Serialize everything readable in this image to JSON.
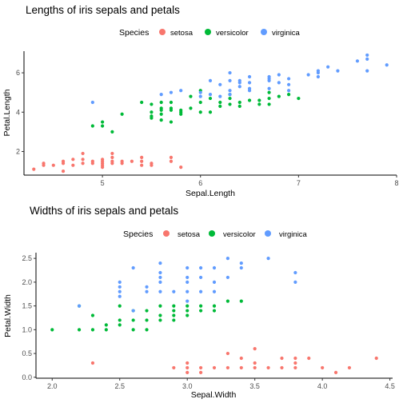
{
  "chart_data": [
    {
      "type": "scatter",
      "title": "Lengths of iris sepals and petals",
      "xlabel": "Sepal.Length",
      "ylabel": "Petal.Length",
      "xlim": [
        4.2,
        8.0
      ],
      "ylim": [
        0.8,
        7.1
      ],
      "xticks": [
        5,
        6,
        7,
        8
      ],
      "yticks": [
        2,
        4,
        6
      ],
      "grid": false,
      "legend": {
        "title": "Species",
        "position": "top",
        "entries": [
          "setosa",
          "versicolor",
          "virginica"
        ]
      },
      "series": [
        {
          "name": "setosa",
          "color": "#F8766D",
          "points": [
            [
              4.3,
              1.1
            ],
            [
              4.4,
              1.3
            ],
            [
              4.4,
              1.4
            ],
            [
              4.5,
              1.3
            ],
            [
              4.6,
              1.0
            ],
            [
              4.6,
              1.4
            ],
            [
              4.6,
              1.5
            ],
            [
              4.7,
              1.3
            ],
            [
              4.7,
              1.6
            ],
            [
              4.8,
              1.4
            ],
            [
              4.8,
              1.6
            ],
            [
              4.8,
              1.9
            ],
            [
              4.9,
              1.4
            ],
            [
              4.9,
              1.5
            ],
            [
              5.0,
              1.2
            ],
            [
              5.0,
              1.3
            ],
            [
              5.0,
              1.4
            ],
            [
              5.0,
              1.5
            ],
            [
              5.0,
              1.6
            ],
            [
              5.1,
              1.4
            ],
            [
              5.1,
              1.5
            ],
            [
              5.1,
              1.7
            ],
            [
              5.1,
              1.9
            ],
            [
              5.2,
              1.4
            ],
            [
              5.2,
              1.5
            ],
            [
              5.3,
              1.5
            ],
            [
              5.4,
              1.3
            ],
            [
              5.4,
              1.5
            ],
            [
              5.4,
              1.7
            ],
            [
              5.5,
              1.3
            ],
            [
              5.5,
              1.4
            ],
            [
              5.7,
              1.5
            ],
            [
              5.7,
              1.7
            ],
            [
              5.8,
              1.2
            ]
          ]
        },
        {
          "name": "versicolor",
          "color": "#00BA38",
          "points": [
            [
              4.9,
              3.3
            ],
            [
              5.0,
              3.3
            ],
            [
              5.0,
              3.5
            ],
            [
              5.1,
              3.0
            ],
            [
              5.2,
              3.9
            ],
            [
              5.4,
              4.5
            ],
            [
              5.5,
              3.7
            ],
            [
              5.5,
              3.8
            ],
            [
              5.5,
              4.0
            ],
            [
              5.5,
              4.4
            ],
            [
              5.6,
              3.6
            ],
            [
              5.6,
              3.9
            ],
            [
              5.6,
              4.1
            ],
            [
              5.6,
              4.2
            ],
            [
              5.6,
              4.5
            ],
            [
              5.7,
              3.5
            ],
            [
              5.7,
              4.1
            ],
            [
              5.7,
              4.2
            ],
            [
              5.7,
              4.5
            ],
            [
              5.8,
              3.9
            ],
            [
              5.8,
              4.0
            ],
            [
              5.8,
              4.1
            ],
            [
              5.9,
              4.2
            ],
            [
              5.9,
              4.8
            ],
            [
              6.0,
              4.0
            ],
            [
              6.0,
              4.5
            ],
            [
              6.0,
              5.1
            ],
            [
              6.1,
              4.0
            ],
            [
              6.1,
              4.7
            ],
            [
              6.2,
              4.3
            ],
            [
              6.2,
              4.5
            ],
            [
              6.3,
              4.4
            ],
            [
              6.3,
              4.7
            ],
            [
              6.3,
              4.9
            ],
            [
              6.4,
              4.3
            ],
            [
              6.4,
              4.5
            ],
            [
              6.5,
              4.6
            ],
            [
              6.6,
              4.4
            ],
            [
              6.6,
              4.6
            ],
            [
              6.7,
              4.4
            ],
            [
              6.7,
              4.7
            ],
            [
              6.7,
              5.0
            ],
            [
              6.8,
              4.8
            ],
            [
              6.9,
              4.9
            ],
            [
              7.0,
              4.7
            ]
          ]
        },
        {
          "name": "virginica",
          "color": "#619CFF",
          "points": [
            [
              4.9,
              4.5
            ],
            [
              5.6,
              4.9
            ],
            [
              5.7,
              5.0
            ],
            [
              5.8,
              5.1
            ],
            [
              6.0,
              4.8
            ],
            [
              6.0,
              5.0
            ],
            [
              6.1,
              4.9
            ],
            [
              6.1,
              5.6
            ],
            [
              6.2,
              4.8
            ],
            [
              6.2,
              5.4
            ],
            [
              6.3,
              4.9
            ],
            [
              6.3,
              5.1
            ],
            [
              6.3,
              5.6
            ],
            [
              6.3,
              6.0
            ],
            [
              6.4,
              5.3
            ],
            [
              6.4,
              5.5
            ],
            [
              6.4,
              5.6
            ],
            [
              6.5,
              5.1
            ],
            [
              6.5,
              5.2
            ],
            [
              6.5,
              5.5
            ],
            [
              6.5,
              5.8
            ],
            [
              6.7,
              5.2
            ],
            [
              6.7,
              5.6
            ],
            [
              6.7,
              5.7
            ],
            [
              6.7,
              5.8
            ],
            [
              6.8,
              5.5
            ],
            [
              6.8,
              5.9
            ],
            [
              6.9,
              5.1
            ],
            [
              6.9,
              5.4
            ],
            [
              6.9,
              5.7
            ],
            [
              7.1,
              5.9
            ],
            [
              7.2,
              5.8
            ],
            [
              7.2,
              6.0
            ],
            [
              7.2,
              6.1
            ],
            [
              7.3,
              6.3
            ],
            [
              7.4,
              6.1
            ],
            [
              7.6,
              6.6
            ],
            [
              7.7,
              6.1
            ],
            [
              7.7,
              6.7
            ],
            [
              7.7,
              6.9
            ],
            [
              7.9,
              6.4
            ]
          ]
        }
      ]
    },
    {
      "type": "scatter",
      "title": "Widths of iris sepals and petals",
      "xlabel": "Sepal.Width",
      "ylabel": "Petal.Width",
      "xlim": [
        1.88,
        4.52
      ],
      "ylim": [
        -0.02,
        2.62
      ],
      "xticks": [
        2.0,
        2.5,
        3.0,
        3.5,
        4.0,
        4.5
      ],
      "xtick_labels": [
        "2.0",
        "2.5",
        "3.0",
        "3.5",
        "4.0",
        "4.5"
      ],
      "yticks": [
        0.0,
        0.5,
        1.0,
        1.5,
        2.0,
        2.5
      ],
      "ytick_labels": [
        "0.0",
        "0.5",
        "1.0",
        "1.5",
        "2.0",
        "2.5"
      ],
      "grid": false,
      "legend": {
        "title": "Species",
        "position": "top",
        "entries": [
          "setosa",
          "versicolor",
          "virginica"
        ]
      },
      "series": [
        {
          "name": "setosa",
          "color": "#F8766D",
          "points": [
            [
              2.3,
              0.3
            ],
            [
              2.9,
              0.2
            ],
            [
              3.0,
              0.1
            ],
            [
              3.0,
              0.2
            ],
            [
              3.0,
              0.3
            ],
            [
              3.1,
              0.1
            ],
            [
              3.1,
              0.2
            ],
            [
              3.2,
              0.2
            ],
            [
              3.3,
              0.2
            ],
            [
              3.3,
              0.5
            ],
            [
              3.4,
              0.2
            ],
            [
              3.4,
              0.4
            ],
            [
              3.5,
              0.2
            ],
            [
              3.5,
              0.3
            ],
            [
              3.5,
              0.6
            ],
            [
              3.6,
              0.2
            ],
            [
              3.7,
              0.2
            ],
            [
              3.7,
              0.4
            ],
            [
              3.8,
              0.2
            ],
            [
              3.8,
              0.3
            ],
            [
              3.8,
              0.4
            ],
            [
              3.9,
              0.4
            ],
            [
              4.0,
              0.2
            ],
            [
              4.1,
              0.1
            ],
            [
              4.2,
              0.2
            ],
            [
              4.4,
              0.4
            ]
          ]
        },
        {
          "name": "versicolor",
          "color": "#00BA38",
          "points": [
            [
              2.0,
              1.0
            ],
            [
              2.2,
              1.0
            ],
            [
              2.2,
              1.5
            ],
            [
              2.3,
              1.0
            ],
            [
              2.3,
              1.3
            ],
            [
              2.4,
              1.0
            ],
            [
              2.4,
              1.1
            ],
            [
              2.5,
              1.1
            ],
            [
              2.5,
              1.2
            ],
            [
              2.5,
              1.5
            ],
            [
              2.6,
              1.0
            ],
            [
              2.6,
              1.2
            ],
            [
              2.6,
              1.4
            ],
            [
              2.7,
              1.0
            ],
            [
              2.7,
              1.2
            ],
            [
              2.7,
              1.4
            ],
            [
              2.8,
              1.2
            ],
            [
              2.8,
              1.3
            ],
            [
              2.8,
              1.5
            ],
            [
              2.9,
              1.2
            ],
            [
              2.9,
              1.3
            ],
            [
              2.9,
              1.4
            ],
            [
              2.9,
              1.5
            ],
            [
              3.0,
              1.3
            ],
            [
              3.0,
              1.4
            ],
            [
              3.0,
              1.5
            ],
            [
              3.1,
              1.4
            ],
            [
              3.1,
              1.5
            ],
            [
              3.2,
              1.4
            ],
            [
              3.2,
              1.5
            ],
            [
              3.3,
              1.6
            ],
            [
              3.4,
              1.6
            ]
          ]
        },
        {
          "name": "virginica",
          "color": "#619CFF",
          "points": [
            [
              2.2,
              1.5
            ],
            [
              2.5,
              1.7
            ],
            [
              2.5,
              1.8
            ],
            [
              2.5,
              1.9
            ],
            [
              2.5,
              2.0
            ],
            [
              2.6,
              1.4
            ],
            [
              2.6,
              2.3
            ],
            [
              2.7,
              1.8
            ],
            [
              2.7,
              1.9
            ],
            [
              2.8,
              1.8
            ],
            [
              2.8,
              2.0
            ],
            [
              2.8,
              2.1
            ],
            [
              2.8,
              2.2
            ],
            [
              2.8,
              2.4
            ],
            [
              2.9,
              1.8
            ],
            [
              3.0,
              1.6
            ],
            [
              3.0,
              1.8
            ],
            [
              3.0,
              2.0
            ],
            [
              3.0,
              2.1
            ],
            [
              3.0,
              2.3
            ],
            [
              3.1,
              1.8
            ],
            [
              3.1,
              2.1
            ],
            [
              3.1,
              2.3
            ],
            [
              3.2,
              1.8
            ],
            [
              3.2,
              2.0
            ],
            [
              3.2,
              2.3
            ],
            [
              3.3,
              2.1
            ],
            [
              3.3,
              2.5
            ],
            [
              3.4,
              2.3
            ],
            [
              3.4,
              2.4
            ],
            [
              3.6,
              2.5
            ],
            [
              3.8,
              2.0
            ],
            [
              3.8,
              2.2
            ]
          ]
        }
      ]
    }
  ]
}
